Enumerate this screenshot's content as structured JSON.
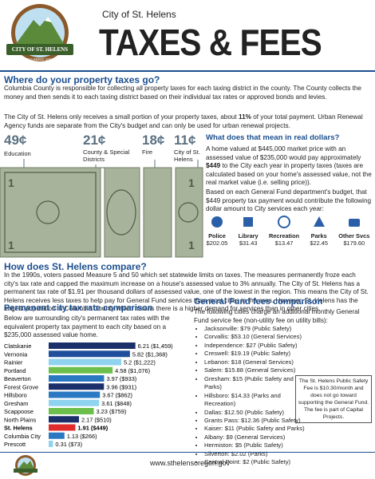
{
  "header": {
    "city": "City of St. Helens",
    "title": "TAXES & FEES",
    "logo_text": "CITY OF ST. HELENS",
    "logo_founded": "FOUNDED 1850"
  },
  "property_taxes": {
    "title": "Where do your property taxes go?",
    "paragraph1": "Columbia County is responsible for collecting all property taxes for each taxing district in the county. The County collects the money and then sends it to each taxing district based on their individual tax rates or approved bonds and levies.",
    "paragraph2": [
      "The City of St. Helens only receives a small portion of your property taxes, about ",
      "11%",
      " of your total payment. Urban Renewal Agency funds are separate from the City's budget and can only be used for urban renewal projects."
    ],
    "shares": [
      {
        "amount": "49¢",
        "label": "Education"
      },
      {
        "amount": "21¢",
        "label": "County & Special Districts"
      },
      {
        "amount": "18¢",
        "label": "Fire"
      },
      {
        "amount": "11¢",
        "label": "City of St. Helens"
      }
    ]
  },
  "real_dollars": {
    "title": "What does that mean in real dollars?",
    "paragraph1": [
      "A home valued at $445,000 market price with an assessed value of $235,000 would pay approximately ",
      "$449",
      " to the City each year in property taxes (taxes are calculated based on your home's assessed value, not the real market value (i.e. selling price))."
    ],
    "paragraph2": "Based on each General Fund department's budget, that $449 property tax payment would contribute the following dollar amount to City services each year:",
    "services": [
      {
        "name": "Police",
        "amount": "$202.05"
      },
      {
        "name": "Library",
        "amount": "$31.43"
      },
      {
        "name": "Recreation",
        "amount": "$13.47"
      },
      {
        "name": "Parks",
        "amount": "$22.45"
      },
      {
        "name": "Other Svcs",
        "amount": "$179.60"
      }
    ]
  },
  "compare": {
    "title": "How does St. Helens compare?",
    "paragraph": "In the 1990s, voters passed Measure 5 and 50 which set statewide limits on taxes. The measures permanently froze each city's tax rate and capped the maximum increase on a house's assessed value to 3% annually. The City of St. Helens has a permanent tax rate of $1.91 per thousand dollars of assessed value, one of the lowest in the region. This means the City of St. Helens receives less taxes to help pay for General Fund services than most cities in the area. However, St. Helens has the largest population in Columbia County which means there is a higher demand for services than in other cities."
  },
  "rate_chart": {
    "title": "Permanent city tax rate comparison",
    "description": "Below are surrounding city's permanent tax rates with the equivalent property tax payment to each city based on a $235,000 assessed value home.",
    "categories": [
      "Clatskanie",
      "Vernonia",
      "Rainier",
      "Portland",
      "Beaverton",
      "Forest Grove",
      "Hillsboro",
      "Gresham",
      "Scappoose",
      "North Plains",
      "St. Helens",
      "Columbia City",
      "Prescott"
    ],
    "values": [
      6.21,
      5.82,
      5.2,
      4.58,
      3.97,
      3.96,
      3.67,
      3.61,
      3.23,
      2.17,
      1.91,
      1.13,
      0.31
    ],
    "value_labels": [
      "6.21 ($1,459)",
      "5.82 ($1,368)",
      "5.2 ($1,222)",
      "4.58 ($1,076)",
      "3.97 ($933)",
      "3.96 ($931)",
      "3.67 ($862)",
      "3.61 ($848)",
      "3.23 ($759)",
      "2.17 ($510)",
      "1.91 ($449)",
      "1.13 ($266)",
      "0.31 ($73)"
    ],
    "colors": [
      "#1b2f6b",
      "#1f4f9c",
      "#8fd3ee",
      "#6cbf4a",
      "#2b78c2",
      "#1b2f6b",
      "#2b78c2",
      "#8fd3ee",
      "#6cbf4a",
      "#1b2f6b",
      "#e02b2b",
      "#2b78c2",
      "#8fd3ee"
    ],
    "highlight": "St. Helens"
  },
  "fees": {
    "title": "General Fund fees comparison",
    "description": "The following cities charge an additional monthly General Fund service fee (non-utility fee on utility bills):",
    "items": [
      "Jacksonville: $79 (Public Safety)",
      "Corvallis: $53.10 (General Services)",
      "Independence: $27 (Public Safety)",
      "Creswell: $19.19 (Public Safety)",
      "Lebanon: $18 (General Services)",
      "Salem: $15.88 (General Services)",
      "Gresham: $15 (Public Safety and Parks)",
      "Hillsboro: $14.33 (Parks and Recreation)",
      "Dallas: $12.50 (Public Safety)",
      "Grants Pass: $12.36 (Public Safety)",
      "Kaiser: $11 (Public Safety and Parks)",
      "Albany: $9 (General Services)",
      "Hermiston: $5 (Public Safety)",
      "Silverton: $2.02 (Parks)",
      "Central Point: $2 (Public Safety)"
    ],
    "note": "The St. Helens Public Safety Fee is $10.30/month and does not go toward supporting the General Fund. The fee is part of Capital Projects."
  },
  "footer": {
    "url": "www.sthelensoregon.gov"
  }
}
